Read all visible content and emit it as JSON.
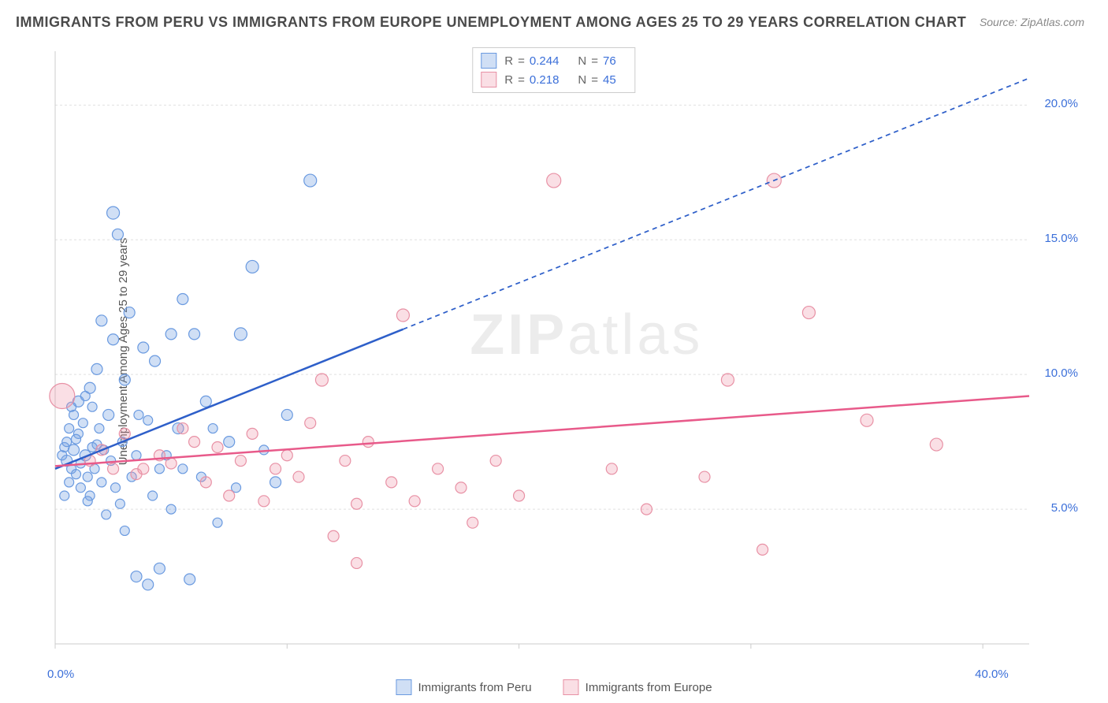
{
  "title": "IMMIGRANTS FROM PERU VS IMMIGRANTS FROM EUROPE UNEMPLOYMENT AMONG AGES 25 TO 29 YEARS CORRELATION CHART",
  "source": "Source: ZipAtlas.com",
  "watermark_bold": "ZIP",
  "watermark_rest": "atlas",
  "y_axis_label": "Unemployment Among Ages 25 to 29 years",
  "chart": {
    "type": "scatter",
    "xlim": [
      0,
      42
    ],
    "ylim": [
      0,
      22
    ],
    "x_ticks": [
      0,
      10,
      20,
      30,
      40
    ],
    "x_tick_labels": [
      "0.0%",
      "",
      "",
      "",
      "40.0%"
    ],
    "y_ticks": [
      5,
      10,
      15,
      20
    ],
    "y_tick_labels": [
      "5.0%",
      "10.0%",
      "15.0%",
      "20.0%"
    ],
    "grid_color": "#e0e0e0",
    "axis_color": "#cccccc",
    "background_color": "#ffffff",
    "series": [
      {
        "name": "Immigrants from Peru",
        "color_fill": "rgba(120,163,226,0.35)",
        "color_stroke": "#6a9ae0",
        "r_value": "0.244",
        "n_value": "76",
        "trend": {
          "x1": 0,
          "y1": 6.5,
          "x2": 42,
          "y2": 21.0,
          "solid_until_x": 15,
          "color": "#2e5fc9",
          "width": 2.5
        },
        "points": [
          {
            "x": 0.3,
            "y": 7.0,
            "r": 6
          },
          {
            "x": 0.4,
            "y": 7.3,
            "r": 6
          },
          {
            "x": 0.5,
            "y": 6.8,
            "r": 7
          },
          {
            "x": 0.5,
            "y": 7.5,
            "r": 6
          },
          {
            "x": 0.6,
            "y": 8.0,
            "r": 6
          },
          {
            "x": 0.7,
            "y": 6.5,
            "r": 6
          },
          {
            "x": 0.8,
            "y": 7.2,
            "r": 7
          },
          {
            "x": 0.8,
            "y": 8.5,
            "r": 6
          },
          {
            "x": 0.9,
            "y": 6.3,
            "r": 6
          },
          {
            "x": 1.0,
            "y": 7.8,
            "r": 6
          },
          {
            "x": 1.0,
            "y": 9.0,
            "r": 7
          },
          {
            "x": 1.1,
            "y": 5.8,
            "r": 6
          },
          {
            "x": 1.2,
            "y": 8.2,
            "r": 6
          },
          {
            "x": 1.3,
            "y": 7.0,
            "r": 7
          },
          {
            "x": 1.4,
            "y": 6.2,
            "r": 6
          },
          {
            "x": 1.5,
            "y": 9.5,
            "r": 7
          },
          {
            "x": 1.5,
            "y": 5.5,
            "r": 6
          },
          {
            "x": 1.6,
            "y": 8.8,
            "r": 6
          },
          {
            "x": 1.8,
            "y": 10.2,
            "r": 7
          },
          {
            "x": 1.8,
            "y": 7.4,
            "r": 6
          },
          {
            "x": 2.0,
            "y": 6.0,
            "r": 6
          },
          {
            "x": 2.0,
            "y": 12.0,
            "r": 7
          },
          {
            "x": 2.2,
            "y": 4.8,
            "r": 6
          },
          {
            "x": 2.3,
            "y": 8.5,
            "r": 7
          },
          {
            "x": 2.5,
            "y": 16.0,
            "r": 8
          },
          {
            "x": 2.5,
            "y": 11.3,
            "r": 7
          },
          {
            "x": 2.7,
            "y": 15.2,
            "r": 7
          },
          {
            "x": 2.8,
            "y": 5.2,
            "r": 6
          },
          {
            "x": 3.0,
            "y": 9.8,
            "r": 7
          },
          {
            "x": 3.0,
            "y": 4.2,
            "r": 6
          },
          {
            "x": 3.2,
            "y": 12.3,
            "r": 7
          },
          {
            "x": 3.5,
            "y": 2.5,
            "r": 7
          },
          {
            "x": 3.5,
            "y": 7.0,
            "r": 6
          },
          {
            "x": 3.8,
            "y": 11.0,
            "r": 7
          },
          {
            "x": 4.0,
            "y": 2.2,
            "r": 7
          },
          {
            "x": 4.0,
            "y": 8.3,
            "r": 6
          },
          {
            "x": 4.3,
            "y": 10.5,
            "r": 7
          },
          {
            "x": 4.5,
            "y": 2.8,
            "r": 7
          },
          {
            "x": 4.5,
            "y": 6.5,
            "r": 6
          },
          {
            "x": 5.0,
            "y": 11.5,
            "r": 7
          },
          {
            "x": 5.0,
            "y": 5.0,
            "r": 6
          },
          {
            "x": 5.3,
            "y": 8.0,
            "r": 7
          },
          {
            "x": 5.5,
            "y": 12.8,
            "r": 7
          },
          {
            "x": 5.8,
            "y": 2.4,
            "r": 7
          },
          {
            "x": 6.0,
            "y": 11.5,
            "r": 7
          },
          {
            "x": 6.3,
            "y": 6.2,
            "r": 6
          },
          {
            "x": 6.5,
            "y": 9.0,
            "r": 7
          },
          {
            "x": 7.0,
            "y": 4.5,
            "r": 6
          },
          {
            "x": 7.5,
            "y": 7.5,
            "r": 7
          },
          {
            "x": 8.0,
            "y": 11.5,
            "r": 8
          },
          {
            "x": 8.5,
            "y": 14.0,
            "r": 8
          },
          {
            "x": 9.5,
            "y": 6.0,
            "r": 7
          },
          {
            "x": 10.0,
            "y": 8.5,
            "r": 7
          },
          {
            "x": 11.0,
            "y": 17.2,
            "r": 8
          },
          {
            "x": 0.4,
            "y": 5.5,
            "r": 6
          },
          {
            "x": 0.6,
            "y": 6.0,
            "r": 6
          },
          {
            "x": 0.7,
            "y": 8.8,
            "r": 6
          },
          {
            "x": 0.9,
            "y": 7.6,
            "r": 6
          },
          {
            "x": 1.1,
            "y": 6.7,
            "r": 6
          },
          {
            "x": 1.3,
            "y": 9.2,
            "r": 6
          },
          {
            "x": 1.4,
            "y": 5.3,
            "r": 6
          },
          {
            "x": 1.6,
            "y": 7.3,
            "r": 6
          },
          {
            "x": 1.7,
            "y": 6.5,
            "r": 6
          },
          {
            "x": 1.9,
            "y": 8.0,
            "r": 6
          },
          {
            "x": 2.1,
            "y": 7.2,
            "r": 6
          },
          {
            "x": 2.4,
            "y": 6.8,
            "r": 6
          },
          {
            "x": 2.6,
            "y": 5.8,
            "r": 6
          },
          {
            "x": 2.9,
            "y": 7.5,
            "r": 6
          },
          {
            "x": 3.3,
            "y": 6.2,
            "r": 6
          },
          {
            "x": 3.6,
            "y": 8.5,
            "r": 6
          },
          {
            "x": 4.2,
            "y": 5.5,
            "r": 6
          },
          {
            "x": 4.8,
            "y": 7.0,
            "r": 6
          },
          {
            "x": 5.5,
            "y": 6.5,
            "r": 6
          },
          {
            "x": 6.8,
            "y": 8.0,
            "r": 6
          },
          {
            "x": 7.8,
            "y": 5.8,
            "r": 6
          },
          {
            "x": 9.0,
            "y": 7.2,
            "r": 6
          }
        ]
      },
      {
        "name": "Immigrants from Europe",
        "color_fill": "rgba(240,150,170,0.3)",
        "color_stroke": "#e891a5",
        "r_value": "0.218",
        "n_value": "45",
        "trend": {
          "x1": 0,
          "y1": 6.6,
          "x2": 42,
          "y2": 9.2,
          "solid_until_x": 42,
          "color": "#e85a8a",
          "width": 2.5
        },
        "points": [
          {
            "x": 0.3,
            "y": 9.2,
            "r": 16
          },
          {
            "x": 1.5,
            "y": 6.8,
            "r": 7
          },
          {
            "x": 2.0,
            "y": 7.2,
            "r": 7
          },
          {
            "x": 2.5,
            "y": 6.5,
            "r": 7
          },
          {
            "x": 3.0,
            "y": 7.8,
            "r": 7
          },
          {
            "x": 3.5,
            "y": 6.3,
            "r": 7
          },
          {
            "x": 4.5,
            "y": 7.0,
            "r": 7
          },
          {
            "x": 5.0,
            "y": 6.7,
            "r": 7
          },
          {
            "x": 5.5,
            "y": 8.0,
            "r": 7
          },
          {
            "x": 6.5,
            "y": 6.0,
            "r": 7
          },
          {
            "x": 7.0,
            "y": 7.3,
            "r": 7
          },
          {
            "x": 7.5,
            "y": 5.5,
            "r": 7
          },
          {
            "x": 8.0,
            "y": 6.8,
            "r": 7
          },
          {
            "x": 8.5,
            "y": 7.8,
            "r": 7
          },
          {
            "x": 9.0,
            "y": 5.3,
            "r": 7
          },
          {
            "x": 9.5,
            "y": 6.5,
            "r": 7
          },
          {
            "x": 10.0,
            "y": 7.0,
            "r": 7
          },
          {
            "x": 10.5,
            "y": 6.2,
            "r": 7
          },
          {
            "x": 11.0,
            "y": 8.2,
            "r": 7
          },
          {
            "x": 11.5,
            "y": 9.8,
            "r": 8
          },
          {
            "x": 12.0,
            "y": 4.0,
            "r": 7
          },
          {
            "x": 12.5,
            "y": 6.8,
            "r": 7
          },
          {
            "x": 13.0,
            "y": 5.2,
            "r": 7
          },
          {
            "x": 13.5,
            "y": 7.5,
            "r": 7
          },
          {
            "x": 14.5,
            "y": 6.0,
            "r": 7
          },
          {
            "x": 15.0,
            "y": 12.2,
            "r": 8
          },
          {
            "x": 15.5,
            "y": 5.3,
            "r": 7
          },
          {
            "x": 16.5,
            "y": 6.5,
            "r": 7
          },
          {
            "x": 17.5,
            "y": 5.8,
            "r": 7
          },
          {
            "x": 18.0,
            "y": 4.5,
            "r": 7
          },
          {
            "x": 19.0,
            "y": 6.8,
            "r": 7
          },
          {
            "x": 20.0,
            "y": 5.5,
            "r": 7
          },
          {
            "x": 21.5,
            "y": 17.2,
            "r": 9
          },
          {
            "x": 24.0,
            "y": 6.5,
            "r": 7
          },
          {
            "x": 25.5,
            "y": 5.0,
            "r": 7
          },
          {
            "x": 28.0,
            "y": 6.2,
            "r": 7
          },
          {
            "x": 29.0,
            "y": 9.8,
            "r": 8
          },
          {
            "x": 30.5,
            "y": 3.5,
            "r": 7
          },
          {
            "x": 31.0,
            "y": 17.2,
            "r": 9
          },
          {
            "x": 32.5,
            "y": 12.3,
            "r": 8
          },
          {
            "x": 35.0,
            "y": 8.3,
            "r": 8
          },
          {
            "x": 38.0,
            "y": 7.4,
            "r": 8
          },
          {
            "x": 3.8,
            "y": 6.5,
            "r": 7
          },
          {
            "x": 6.0,
            "y": 7.5,
            "r": 7
          },
          {
            "x": 13.0,
            "y": 3.0,
            "r": 7
          }
        ]
      }
    ]
  },
  "stats_labels": {
    "r": "R",
    "n": "N",
    "eq": "="
  },
  "legend": {
    "series1": "Immigrants from Peru",
    "series2": "Immigrants from Europe"
  }
}
